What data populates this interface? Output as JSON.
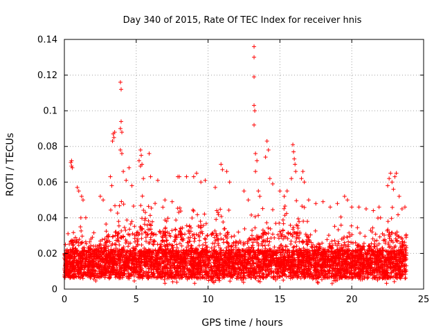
{
  "chart_data": {
    "type": "scatter",
    "title": "Day 340 of 2015, Rate Of TEC Index for receiver hnis",
    "xlabel": "GPS time / hours",
    "ylabel": "ROTI / TECUs",
    "xlim": [
      0,
      25
    ],
    "ylim": [
      0,
      0.14
    ],
    "xticks": [
      0,
      5,
      10,
      15,
      20,
      25
    ],
    "yticks": [
      0,
      0.02,
      0.04,
      0.06,
      0.08,
      0.1,
      0.12,
      0.14
    ],
    "xtick_labels": [
      "0",
      "5",
      "10",
      "15",
      "20",
      "25"
    ],
    "ytick_labels": [
      "0",
      "0.02",
      "0.04",
      "0.06",
      "0.08",
      "0.1",
      "0.12",
      "0.14"
    ],
    "grid": true,
    "marker": "plus",
    "series": [
      {
        "name": "ROTI",
        "color": "#ff0000",
        "points": [
          [
            0.5,
            0.072
          ],
          [
            0.5,
            0.069
          ],
          [
            0.55,
            0.068
          ],
          [
            0.45,
            0.071
          ],
          [
            0.9,
            0.057
          ],
          [
            1.0,
            0.055
          ],
          [
            1.2,
            0.052
          ],
          [
            1.3,
            0.05
          ],
          [
            2.5,
            0.052
          ],
          [
            2.7,
            0.05
          ],
          [
            3.2,
            0.063
          ],
          [
            3.3,
            0.058
          ],
          [
            3.4,
            0.087
          ],
          [
            3.5,
            0.088
          ],
          [
            3.45,
            0.085
          ],
          [
            3.35,
            0.083
          ],
          [
            3.9,
            0.116
          ],
          [
            3.95,
            0.112
          ],
          [
            3.95,
            0.094
          ],
          [
            3.9,
            0.09
          ],
          [
            4.0,
            0.088
          ],
          [
            3.9,
            0.078
          ],
          [
            4.0,
            0.076
          ],
          [
            4.1,
            0.066
          ],
          [
            4.3,
            0.061
          ],
          [
            4.5,
            0.068
          ],
          [
            4.7,
            0.058
          ],
          [
            5.2,
            0.072
          ],
          [
            5.3,
            0.069
          ],
          [
            5.3,
            0.078
          ],
          [
            5.35,
            0.075
          ],
          [
            5.4,
            0.07
          ],
          [
            5.5,
            0.062
          ],
          [
            5.9,
            0.076
          ],
          [
            6.0,
            0.063
          ],
          [
            6.5,
            0.061
          ],
          [
            7.0,
            0.05
          ],
          [
            7.5,
            0.049
          ],
          [
            7.9,
            0.063
          ],
          [
            8.0,
            0.063
          ],
          [
            8.5,
            0.063
          ],
          [
            9.0,
            0.063
          ],
          [
            9.2,
            0.065
          ],
          [
            9.5,
            0.06
          ],
          [
            9.8,
            0.061
          ],
          [
            10.5,
            0.057
          ],
          [
            10.9,
            0.07
          ],
          [
            11.0,
            0.067
          ],
          [
            11.3,
            0.066
          ],
          [
            11.5,
            0.06
          ],
          [
            12.5,
            0.055
          ],
          [
            12.8,
            0.05
          ],
          [
            13.2,
            0.136
          ],
          [
            13.2,
            0.13
          ],
          [
            13.2,
            0.119
          ],
          [
            13.2,
            0.103
          ],
          [
            13.25,
            0.1
          ],
          [
            13.2,
            0.092
          ],
          [
            13.3,
            0.076
          ],
          [
            13.4,
            0.072
          ],
          [
            13.3,
            0.066
          ],
          [
            13.5,
            0.055
          ],
          [
            13.6,
            0.052
          ],
          [
            14.1,
            0.083
          ],
          [
            14.2,
            0.078
          ],
          [
            14.0,
            0.074
          ],
          [
            14.3,
            0.062
          ],
          [
            14.5,
            0.059
          ],
          [
            15.0,
            0.055
          ],
          [
            15.3,
            0.052
          ],
          [
            15.5,
            0.055
          ],
          [
            15.9,
            0.081
          ],
          [
            15.95,
            0.077
          ],
          [
            16.0,
            0.073
          ],
          [
            16.05,
            0.07
          ],
          [
            16.1,
            0.066
          ],
          [
            15.8,
            0.062
          ],
          [
            16.5,
            0.062
          ],
          [
            16.6,
            0.066
          ],
          [
            16.7,
            0.06
          ],
          [
            17.0,
            0.05
          ],
          [
            17.5,
            0.048
          ],
          [
            18.0,
            0.049
          ],
          [
            18.5,
            0.046
          ],
          [
            19.0,
            0.048
          ],
          [
            19.5,
            0.052
          ],
          [
            19.7,
            0.05
          ],
          [
            20.0,
            0.046
          ],
          [
            20.5,
            0.046
          ],
          [
            21.0,
            0.045
          ],
          [
            21.5,
            0.044
          ],
          [
            21.9,
            0.046
          ],
          [
            22.0,
            0.04
          ],
          [
            22.5,
            0.058
          ],
          [
            22.6,
            0.062
          ],
          [
            22.7,
            0.065
          ],
          [
            22.8,
            0.06
          ],
          [
            22.9,
            0.056
          ],
          [
            23.0,
            0.063
          ],
          [
            23.1,
            0.065
          ],
          [
            23.3,
            0.052
          ],
          [
            23.5,
            0.045
          ],
          [
            23.7,
            0.046
          ]
        ],
        "dense_band": {
          "x_range": [
            0,
            23.8
          ],
          "baseline_min": 0.003,
          "profile": [
            [
              0,
              0.028
            ],
            [
              0.5,
              0.038
            ],
            [
              1.0,
              0.045
            ],
            [
              1.5,
              0.04
            ],
            [
              2.0,
              0.032
            ],
            [
              2.5,
              0.04
            ],
            [
              3.0,
              0.042
            ],
            [
              3.5,
              0.048
            ],
            [
              4.0,
              0.052
            ],
            [
              4.5,
              0.055
            ],
            [
              5.0,
              0.05
            ],
            [
              5.5,
              0.054
            ],
            [
              6.0,
              0.052
            ],
            [
              6.5,
              0.048
            ],
            [
              7.0,
              0.046
            ],
            [
              7.5,
              0.048
            ],
            [
              8.0,
              0.05
            ],
            [
              8.5,
              0.052
            ],
            [
              9.0,
              0.05
            ],
            [
              9.5,
              0.048
            ],
            [
              10.0,
              0.042
            ],
            [
              10.5,
              0.048
            ],
            [
              11.0,
              0.052
            ],
            [
              11.5,
              0.045
            ],
            [
              12.0,
              0.04
            ],
            [
              12.5,
              0.038
            ],
            [
              13.0,
              0.042
            ],
            [
              13.5,
              0.045
            ],
            [
              14.0,
              0.05
            ],
            [
              14.5,
              0.048
            ],
            [
              15.0,
              0.045
            ],
            [
              15.5,
              0.048
            ],
            [
              16.0,
              0.055
            ],
            [
              16.5,
              0.052
            ],
            [
              17.0,
              0.04
            ],
            [
              17.5,
              0.035
            ],
            [
              18.0,
              0.033
            ],
            [
              18.5,
              0.036
            ],
            [
              19.0,
              0.04
            ],
            [
              19.5,
              0.042
            ],
            [
              20.0,
              0.038
            ],
            [
              20.5,
              0.034
            ],
            [
              21.0,
              0.036
            ],
            [
              21.5,
              0.04
            ],
            [
              22.0,
              0.042
            ],
            [
              22.5,
              0.048
            ],
            [
              23.0,
              0.045
            ],
            [
              23.5,
              0.04
            ],
            [
              23.8,
              0.035
            ]
          ]
        }
      }
    ]
  }
}
